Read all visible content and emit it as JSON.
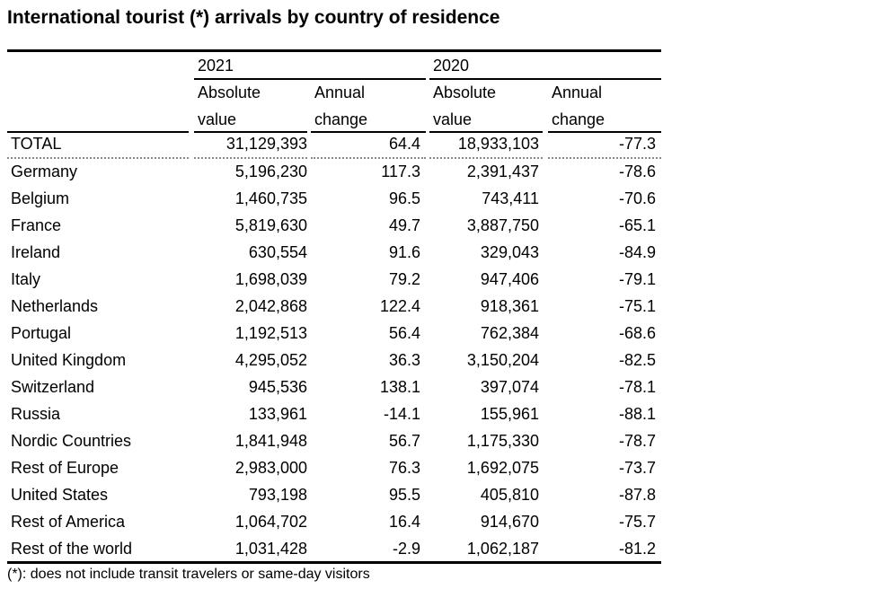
{
  "title": "International tourist (*) arrivals by country of residence",
  "header": {
    "year_2021": "2021",
    "year_2020": "2020",
    "abs_line1": "Absolute",
    "abs_line2": "value",
    "chg_line1": "Annual",
    "chg_line2": "change"
  },
  "total": {
    "label": "TOTAL",
    "abs2021": "31,129,393",
    "chg2021": "64.4",
    "abs2020": "18,933,103",
    "chg2020": "-77.3"
  },
  "rows": [
    {
      "label": "Germany",
      "abs2021": "5,196,230",
      "chg2021": "117.3",
      "abs2020": "2,391,437",
      "chg2020": "-78.6"
    },
    {
      "label": "Belgium",
      "abs2021": "1,460,735",
      "chg2021": "96.5",
      "abs2020": "743,411",
      "chg2020": "-70.6"
    },
    {
      "label": "France",
      "abs2021": "5,819,630",
      "chg2021": "49.7",
      "abs2020": "3,887,750",
      "chg2020": "-65.1"
    },
    {
      "label": "Ireland",
      "abs2021": "630,554",
      "chg2021": "91.6",
      "abs2020": "329,043",
      "chg2020": "-84.9"
    },
    {
      "label": "Italy",
      "abs2021": "1,698,039",
      "chg2021": "79.2",
      "abs2020": "947,406",
      "chg2020": "-79.1"
    },
    {
      "label": "Netherlands",
      "abs2021": "2,042,868",
      "chg2021": "122.4",
      "abs2020": "918,361",
      "chg2020": "-75.1"
    },
    {
      "label": "Portugal",
      "abs2021": "1,192,513",
      "chg2021": "56.4",
      "abs2020": "762,384",
      "chg2020": "-68.6"
    },
    {
      "label": "United Kingdom",
      "abs2021": "4,295,052",
      "chg2021": "36.3",
      "abs2020": "3,150,204",
      "chg2020": "-82.5"
    },
    {
      "label": "Switzerland",
      "abs2021": "945,536",
      "chg2021": "138.1",
      "abs2020": "397,074",
      "chg2020": "-78.1"
    },
    {
      "label": "Russia",
      "abs2021": "133,961",
      "chg2021": "-14.1",
      "abs2020": "155,961",
      "chg2020": "-88.1"
    },
    {
      "label": "Nordic Countries",
      "abs2021": "1,841,948",
      "chg2021": "56.7",
      "abs2020": "1,175,330",
      "chg2020": "-78.7"
    },
    {
      "label": "Rest of Europe",
      "abs2021": "2,983,000",
      "chg2021": "76.3",
      "abs2020": "1,692,075",
      "chg2020": "-73.7"
    },
    {
      "label": "United States",
      "abs2021": "793,198",
      "chg2021": "95.5",
      "abs2020": "405,810",
      "chg2020": "-87.8"
    },
    {
      "label": "Rest of America",
      "abs2021": "1,064,702",
      "chg2021": "16.4",
      "abs2020": "914,670",
      "chg2020": "-75.7"
    },
    {
      "label": "Rest of the world",
      "abs2021": "1,031,428",
      "chg2021": "-2.9",
      "abs2020": "1,062,187",
      "chg2020": "-81.2"
    }
  ],
  "footnote": "(*): does not include transit travelers or same-day visitors"
}
